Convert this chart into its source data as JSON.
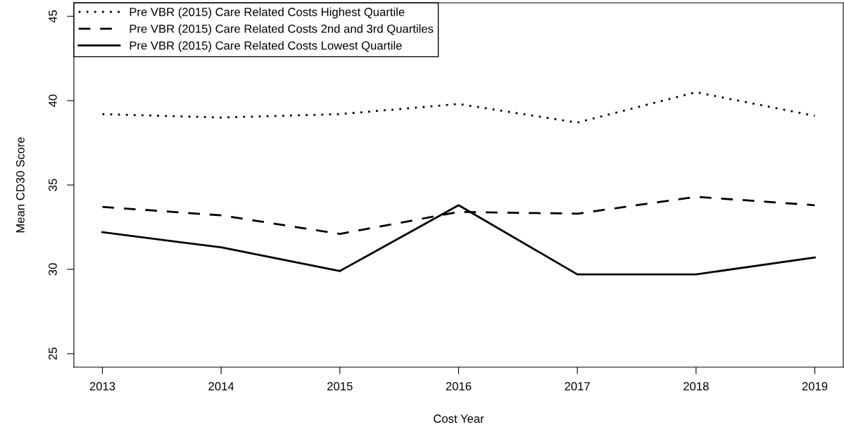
{
  "chart_data": {
    "type": "line",
    "xlabel": "Cost Year",
    "ylabel": "Mean CD30 Score",
    "x": [
      2013,
      2014,
      2015,
      2016,
      2017,
      2018,
      2019
    ],
    "series": [
      {
        "name": "Pre VBR (2015) Care Related Costs Highest Quartile",
        "color": "#000000",
        "line_style": "dotted",
        "values": [
          39.2,
          39.0,
          39.2,
          39.8,
          38.7,
          40.5,
          39.1
        ]
      },
      {
        "name": "Pre VBR (2015) Care Related Costs 2nd and 3rd Quartiles",
        "color": "#000000",
        "line_style": "dashed",
        "values": [
          33.7,
          33.2,
          32.1,
          33.4,
          33.3,
          34.3,
          33.8
        ]
      },
      {
        "name": "Pre VBR (2015) Care Related Costs Lowest Quartile",
        "color": "#000000",
        "line_style": "solid",
        "values": [
          32.2,
          31.3,
          29.9,
          33.8,
          29.7,
          29.7,
          30.7
        ]
      }
    ],
    "xlim": [
      2012.76,
      2019.24
    ],
    "ylim": [
      24.2,
      45.8
    ],
    "xticks": [
      2013,
      2014,
      2015,
      2016,
      2017,
      2018,
      2019
    ],
    "yticks": [
      25,
      30,
      35,
      40,
      45
    ],
    "grid": false,
    "legend": "top left"
  }
}
